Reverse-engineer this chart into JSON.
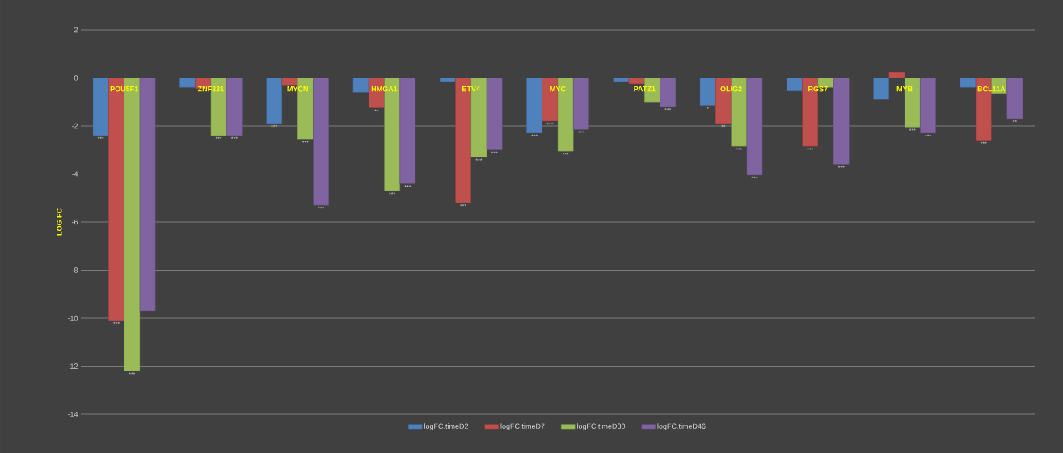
{
  "chart_data": {
    "type": "bar",
    "ylabel": "LOG FC",
    "categories": [
      "POU5F1",
      "ZNF331",
      "MYCN",
      "HMGA1",
      "ETV4",
      "MYC",
      "PATZ1",
      "OLIG2",
      "RGS7",
      "MYB",
      "BCL11A"
    ],
    "series": [
      {
        "name": "logFC.timeD2",
        "color": "#4f81bd",
        "values": [
          -2.4,
          -0.4,
          -1.9,
          -0.6,
          -0.15,
          -2.3,
          -0.15,
          -1.15,
          -0.55,
          -0.9,
          -0.4
        ],
        "value_labels": [
          "***",
          null,
          "***",
          null,
          null,
          "***",
          null,
          "*",
          null,
          null,
          null
        ]
      },
      {
        "name": "logFC.timeD7",
        "color": "#c0504d",
        "values": [
          -10.1,
          -0.45,
          -0.3,
          -1.25,
          -5.2,
          -1.8,
          -0.25,
          -1.9,
          -2.85,
          0.25,
          -2.6
        ],
        "value_labels": [
          "***",
          null,
          null,
          "**",
          "***",
          "***",
          null,
          "**",
          "***",
          null,
          "***"
        ]
      },
      {
        "name": "logFC.timeD30",
        "color": "#9bbb59",
        "values": [
          -12.2,
          -2.4,
          -2.55,
          -4.7,
          -3.3,
          -3.05,
          -1.0,
          -2.85,
          -0.4,
          -2.05,
          -0.65
        ],
        "value_labels": [
          "***",
          "***",
          "***",
          "***",
          "***",
          "***",
          null,
          "***",
          null,
          "***",
          null
        ]
      },
      {
        "name": "logFC.timeD46",
        "color": "#8064a2",
        "values": [
          -9.7,
          -2.4,
          -5.3,
          -4.4,
          -3.0,
          -2.15,
          -1.2,
          -4.05,
          -3.6,
          -2.3,
          -1.7
        ],
        "value_labels": [
          null,
          "***",
          "***",
          "***",
          "***",
          "***",
          "***",
          "***",
          "***",
          "***",
          "**"
        ]
      }
    ],
    "ylim": [
      -14,
      2
    ],
    "yticks": [
      -14,
      -12,
      -10,
      -8,
      -6,
      -4,
      -2,
      0,
      2
    ],
    "grid": "y",
    "legend": "bottom"
  }
}
